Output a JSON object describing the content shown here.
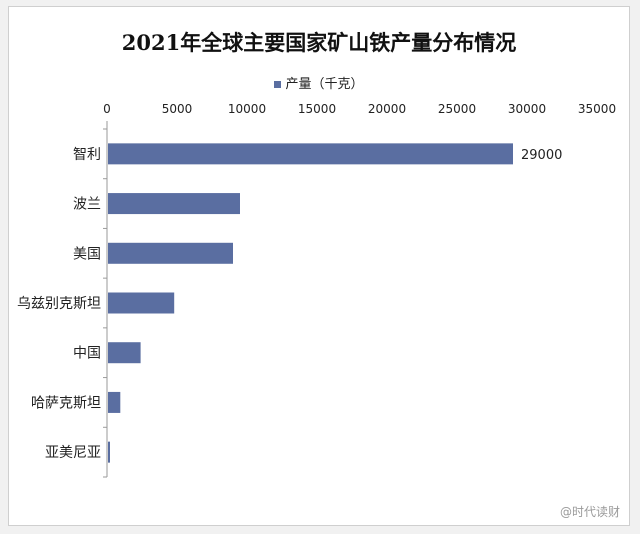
{
  "chart_data": {
    "type": "bar",
    "orientation": "horizontal",
    "title": "2021年全球主要国家矿山铁产量分布情况",
    "categories": [
      "智利",
      "波兰",
      "美国",
      "乌兹别克斯坦",
      "中国",
      "哈萨克斯坦",
      "亚美尼亚"
    ],
    "series": [
      {
        "name": "产量（千克）",
        "values": [
          29000,
          9500,
          9000,
          4800,
          2400,
          950,
          200
        ],
        "data_labels": [
          "29000",
          null,
          null,
          null,
          null,
          null,
          null
        ]
      }
    ],
    "xlim": [
      0,
      35000
    ],
    "x_ticks": [
      "0",
      "5000",
      "10000",
      "15000",
      "20000",
      "25000",
      "30000",
      "35000"
    ],
    "x_axis_position": "top",
    "grid": false,
    "legend_position": "top",
    "bar_color": "#5a6ea1"
  },
  "watermark": "@时代读财"
}
